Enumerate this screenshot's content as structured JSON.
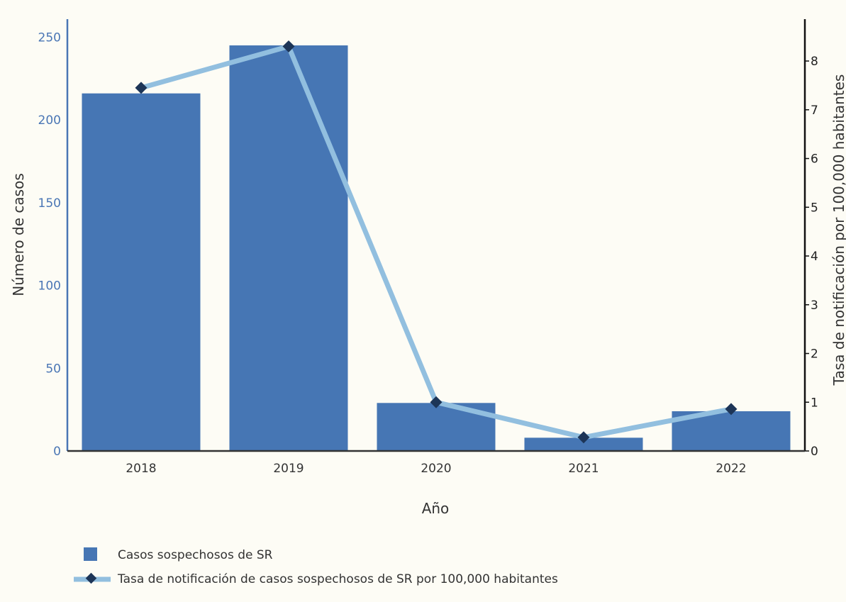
{
  "chart_data": {
    "type": "bar",
    "categories": [
      "2018",
      "2019",
      "2020",
      "2021",
      "2022"
    ],
    "series": [
      {
        "name": "Casos sospechosos de SR",
        "type": "bar",
        "axis": "left",
        "values": [
          216,
          245,
          29,
          8,
          24
        ],
        "color": "#4676b4"
      },
      {
        "name": "Tasa de notificación de casos sospechosos de SR por 100,000 habitantes",
        "type": "line",
        "axis": "right",
        "values": [
          7.45,
          8.3,
          1.0,
          0.28,
          0.86
        ],
        "line_color": "#92bfdf",
        "marker_color": "#1d3557"
      }
    ],
    "xlabel": "Año",
    "ylabel_left": "Número de casos",
    "ylabel_right": "Tasa de notificación por 100,000 habitantes",
    "ylim_left": [
      0,
      260
    ],
    "ylim_right": [
      0,
      8.83
    ],
    "yticks_left": [
      "0",
      "50",
      "100",
      "150",
      "200",
      "250"
    ],
    "yticks_right": [
      "0",
      "1",
      "2",
      "3",
      "4",
      "5",
      "6",
      "7",
      "8"
    ],
    "left_axis_color": "#4a76b5",
    "right_axis_color": "#111111",
    "grid": false,
    "legend_position": "bottom-left"
  }
}
